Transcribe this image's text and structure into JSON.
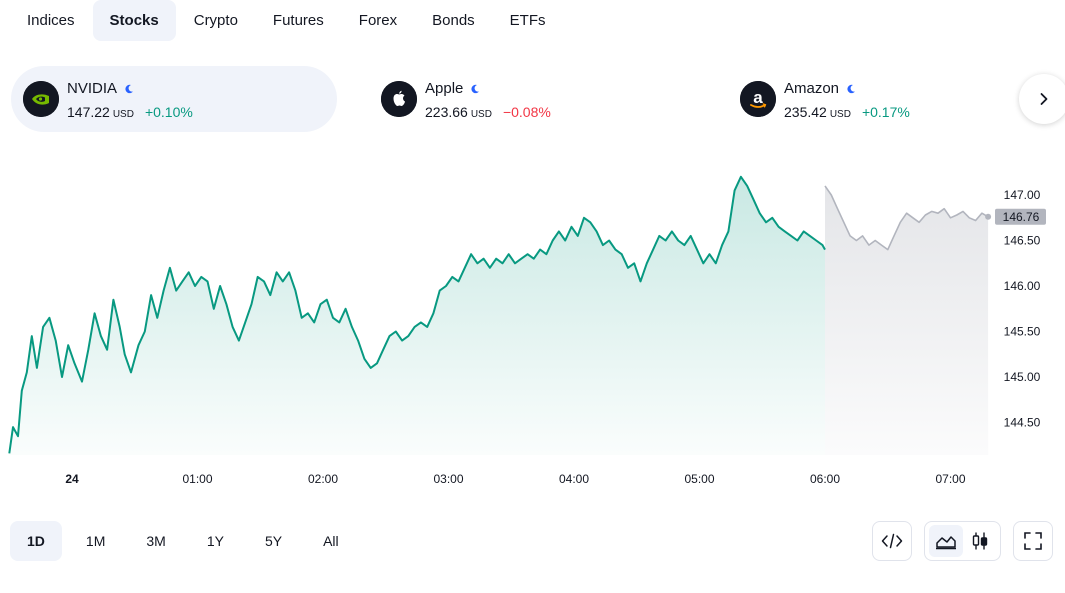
{
  "tabs": [
    {
      "label": "Indices"
    },
    {
      "label": "Stocks"
    },
    {
      "label": "Crypto"
    },
    {
      "label": "Futures"
    },
    {
      "label": "Forex"
    },
    {
      "label": "Bonds"
    },
    {
      "label": "ETFs"
    }
  ],
  "active_tab": "Stocks",
  "tickers": [
    {
      "name": "NVIDIA",
      "price": "147.22",
      "currency": "USD",
      "change": "+0.10%",
      "direction": "up",
      "logo": "nvidia-logo"
    },
    {
      "name": "Apple",
      "price": "223.66",
      "currency": "USD",
      "change": "−0.08%",
      "direction": "down",
      "logo": "apple-logo"
    },
    {
      "name": "Amazon",
      "price": "235.42",
      "currency": "USD",
      "change": "+0.17%",
      "direction": "up",
      "logo": "amazon-logo"
    }
  ],
  "colors": {
    "up": "#089981",
    "down": "#f23645",
    "line": "#089981",
    "extended_line": "#b2b5be",
    "market_status": "#2962ff"
  },
  "ranges": [
    "1D",
    "1M",
    "3M",
    "1Y",
    "5Y",
    "All"
  ],
  "active_range": "1D",
  "controls": {
    "embed_icon": "code-icon",
    "area_icon": "area-chart-icon",
    "candles_icon": "candlestick-icon",
    "fullscreen_icon": "fullscreen-icon"
  },
  "chart_data": {
    "type": "area",
    "symbol": "NVIDIA",
    "x_ticks": [
      "24",
      "01:00",
      "02:00",
      "03:00",
      "04:00",
      "05:00",
      "06:00",
      "07:00"
    ],
    "y_ticks": [
      "147.00",
      "146.50",
      "146.00",
      "145.50",
      "145.00",
      "144.50"
    ],
    "ylim": [
      144.1,
      147.3
    ],
    "last_price_label": "146.76",
    "grid": false,
    "session_split_hour": 6.0,
    "series": [
      {
        "session": "regular",
        "x_hours": [
          -0.5,
          -0.47,
          -0.43,
          -0.4,
          -0.36,
          -0.32,
          -0.28,
          -0.23,
          -0.18,
          -0.13,
          -0.08,
          -0.03,
          0.02,
          0.08,
          0.13,
          0.18,
          0.23,
          0.28,
          0.33,
          0.38,
          0.42,
          0.47,
          0.53,
          0.58,
          0.63,
          0.68,
          0.73,
          0.78,
          0.83,
          0.88,
          0.93,
          0.98,
          1.03,
          1.08,
          1.13,
          1.18,
          1.23,
          1.28,
          1.33,
          1.38,
          1.43,
          1.48,
          1.53,
          1.58,
          1.63,
          1.68,
          1.73,
          1.78,
          1.83,
          1.88,
          1.93,
          1.98,
          2.03,
          2.08,
          2.13,
          2.18,
          2.23,
          2.28,
          2.33,
          2.38,
          2.43,
          2.48,
          2.53,
          2.58,
          2.63,
          2.68,
          2.73,
          2.78,
          2.83,
          2.88,
          2.93,
          2.98,
          3.03,
          3.08,
          3.13,
          3.18,
          3.23,
          3.28,
          3.33,
          3.38,
          3.43,
          3.48,
          3.53,
          3.58,
          3.63,
          3.68,
          3.73,
          3.78,
          3.83,
          3.88,
          3.93,
          3.98,
          4.03,
          4.08,
          4.13,
          4.18,
          4.23,
          4.28,
          4.33,
          4.38,
          4.43,
          4.48,
          4.53,
          4.58,
          4.63,
          4.68,
          4.73,
          4.78,
          4.83,
          4.88,
          4.93,
          4.98,
          5.03,
          5.08,
          5.13,
          5.18,
          5.23,
          5.28,
          5.33,
          5.38,
          5.43,
          5.48,
          5.53,
          5.58,
          5.63,
          5.68,
          5.73,
          5.78,
          5.83,
          5.88,
          5.93,
          5.98,
          6.0
        ],
        "values": [
          144.16,
          144.45,
          144.35,
          144.85,
          145.05,
          145.45,
          145.1,
          145.55,
          145.65,
          145.4,
          145.0,
          145.35,
          145.15,
          144.95,
          145.3,
          145.7,
          145.45,
          145.3,
          145.85,
          145.55,
          145.25,
          145.05,
          145.35,
          145.5,
          145.9,
          145.65,
          145.95,
          146.2,
          145.95,
          146.05,
          146.15,
          146.0,
          146.1,
          146.05,
          145.75,
          146.0,
          145.8,
          145.55,
          145.4,
          145.6,
          145.8,
          146.1,
          146.05,
          145.9,
          146.15,
          146.05,
          146.15,
          145.95,
          145.65,
          145.7,
          145.6,
          145.8,
          145.85,
          145.65,
          145.6,
          145.75,
          145.55,
          145.4,
          145.2,
          145.1,
          145.15,
          145.3,
          145.45,
          145.5,
          145.4,
          145.45,
          145.55,
          145.6,
          145.55,
          145.7,
          145.95,
          146.0,
          146.1,
          146.05,
          146.2,
          146.35,
          146.25,
          146.3,
          146.2,
          146.3,
          146.25,
          146.35,
          146.25,
          146.3,
          146.35,
          146.3,
          146.4,
          146.35,
          146.5,
          146.6,
          146.5,
          146.65,
          146.55,
          146.75,
          146.7,
          146.6,
          146.45,
          146.5,
          146.4,
          146.35,
          146.2,
          146.25,
          146.05,
          146.25,
          146.4,
          146.55,
          146.5,
          146.6,
          146.5,
          146.45,
          146.55,
          146.4,
          146.25,
          146.35,
          146.25,
          146.45,
          146.6,
          147.05,
          147.2,
          147.1,
          146.95,
          146.8,
          146.7,
          146.75,
          146.65,
          146.6,
          146.55,
          146.5,
          146.6,
          146.55,
          146.5,
          146.45,
          146.4
        ]
      },
      {
        "session": "extended",
        "x_hours": [
          6.0,
          6.05,
          6.1,
          6.15,
          6.2,
          6.25,
          6.3,
          6.35,
          6.4,
          6.45,
          6.5,
          6.55,
          6.6,
          6.65,
          6.7,
          6.75,
          6.8,
          6.85,
          6.9,
          6.95,
          7.0,
          7.05,
          7.1,
          7.15,
          7.2,
          7.25,
          7.3
        ],
        "values": [
          147.1,
          147.0,
          146.85,
          146.7,
          146.55,
          146.5,
          146.55,
          146.45,
          146.5,
          146.45,
          146.4,
          146.55,
          146.7,
          146.8,
          146.75,
          146.7,
          146.78,
          146.82,
          146.8,
          146.85,
          146.75,
          146.78,
          146.82,
          146.75,
          146.72,
          146.8,
          146.76
        ]
      }
    ]
  }
}
